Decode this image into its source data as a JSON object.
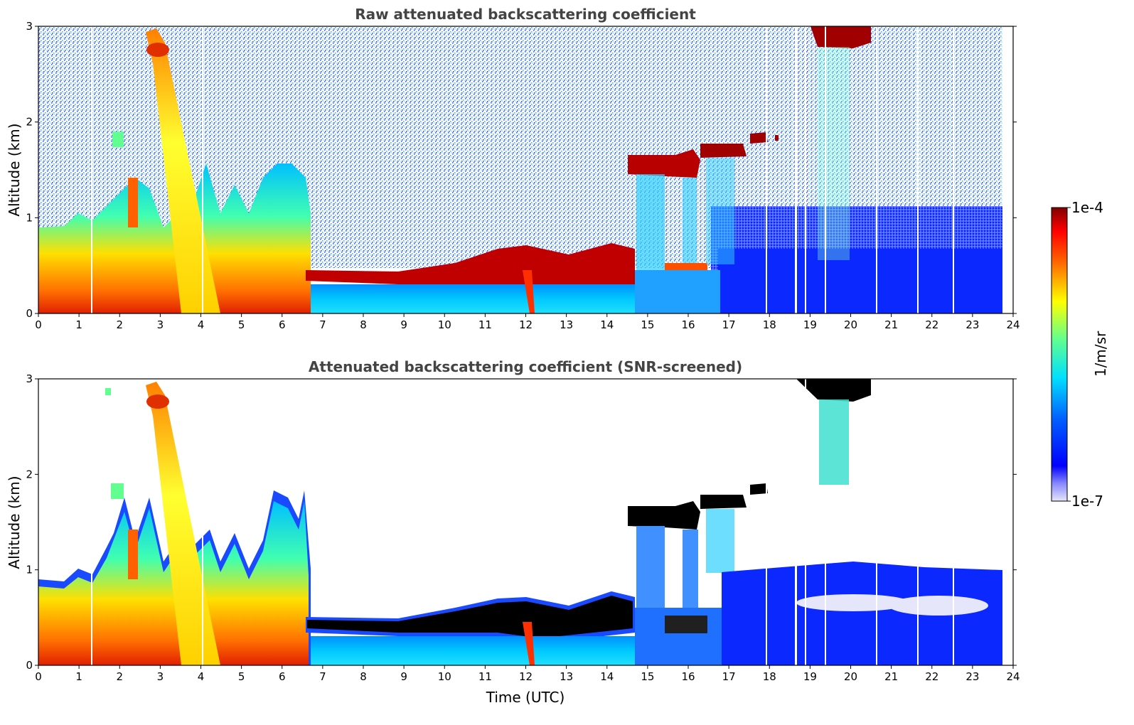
{
  "colors": {
    "colormap": "jet",
    "colormap_stops": [
      "#000080",
      "#0000ff",
      "#0080ff",
      "#00ffff",
      "#80ff80",
      "#ffff00",
      "#ff8000",
      "#ff0000",
      "#800000"
    ],
    "low_end": "#e6e6fa",
    "saturated": "#000000",
    "title_color": "#444444"
  },
  "chart_data": [
    {
      "type": "heatmap",
      "title": "Raw attenuated backscattering coefficient",
      "xlabel": "",
      "ylabel": "Altitude (km)",
      "xlim": [
        0,
        24
      ],
      "ylim": [
        0,
        3
      ],
      "xticks": [
        "0",
        "1",
        "2",
        "3",
        "4",
        "5",
        "6",
        "7",
        "8",
        "9",
        "10",
        "11",
        "12",
        "13",
        "14",
        "15",
        "16",
        "17",
        "18",
        "19",
        "20",
        "21",
        "22",
        "23",
        "24"
      ],
      "yticks": [
        "0",
        "1",
        "2",
        "3"
      ],
      "features": [
        {
          "feature": "aerosol layer",
          "x": [
            0,
            6.7
          ],
          "y": [
            0,
            1.0
          ]
        },
        {
          "feature": "plume",
          "x": [
            2.5,
            4.0
          ],
          "y": [
            0,
            2.9
          ]
        },
        {
          "feature": "boundary layer top",
          "x": [
            6.7,
            14.7
          ],
          "y": [
            0.3,
            0.55
          ]
        },
        {
          "feature": "cloud",
          "x": [
            14.7,
            16.3
          ],
          "y": [
            1.45,
            1.65
          ]
        },
        {
          "feature": "cloud",
          "x": [
            16.3,
            18.2
          ],
          "y": [
            1.65,
            1.85
          ]
        },
        {
          "feature": "cloud",
          "x": [
            19.0,
            20.5
          ],
          "y": [
            2.75,
            3.0
          ]
        },
        {
          "feature": "noise",
          "x": [
            6.7,
            24
          ],
          "y": [
            0.5,
            3.0
          ]
        }
      ],
      "colorbar": {
        "label": "1/m/sr",
        "min": "1e-7",
        "max": "1e-4",
        "scale": "log"
      }
    },
    {
      "type": "heatmap",
      "title": "Attenuated backscattering coefficient (SNR-screened)",
      "xlabel": "Time (UTC)",
      "ylabel": "Altitude (km)",
      "xlim": [
        0,
        24
      ],
      "ylim": [
        0,
        3
      ],
      "xticks": [
        "0",
        "1",
        "2",
        "3",
        "4",
        "5",
        "6",
        "7",
        "8",
        "9",
        "10",
        "11",
        "12",
        "13",
        "14",
        "15",
        "16",
        "17",
        "18",
        "19",
        "20",
        "21",
        "22",
        "23",
        "24"
      ],
      "yticks": [
        "0",
        "1",
        "2",
        "3"
      ],
      "features": [
        {
          "feature": "aerosol layer",
          "x": [
            0,
            6.7
          ],
          "y": [
            0,
            1.0
          ]
        },
        {
          "feature": "plume",
          "x": [
            2.5,
            4.0
          ],
          "y": [
            0,
            2.9
          ]
        },
        {
          "feature": "boundary layer top",
          "x": [
            6.7,
            14.7
          ],
          "y": [
            0.3,
            0.55
          ]
        },
        {
          "feature": "cloud",
          "x": [
            14.7,
            16.3
          ],
          "y": [
            1.45,
            1.65
          ]
        },
        {
          "feature": "cloud",
          "x": [
            16.3,
            18.2
          ],
          "y": [
            1.65,
            1.85
          ]
        },
        {
          "feature": "cloud",
          "x": [
            19.0,
            20.5
          ],
          "y": [
            2.75,
            3.0
          ]
        },
        {
          "feature": "screened residual",
          "x": [
            16.8,
            23.8
          ],
          "y": [
            0,
            1.0
          ]
        }
      ],
      "colorbar": {
        "label": "1/m/sr",
        "min": "1e-7",
        "max": "1e-4",
        "scale": "log"
      }
    }
  ]
}
